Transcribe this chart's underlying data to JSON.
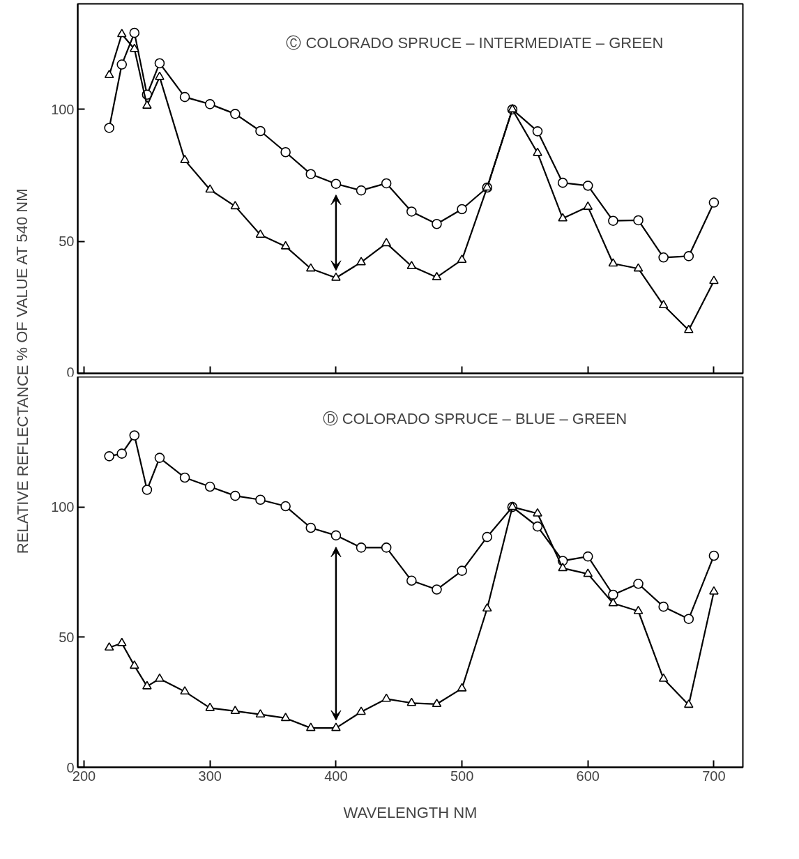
{
  "chart_data": [
    {
      "type": "line",
      "title": "Ⓒ  COLORADO SPRUCE – INTERMEDIATE – GREEN",
      "ylabel": "RELATIVE REFLECTANCE % OF VALUE AT 540 NM",
      "x": [
        220,
        230,
        240,
        250,
        260,
        280,
        300,
        320,
        340,
        360,
        380,
        400,
        420,
        440,
        460,
        480,
        500,
        520,
        540,
        560,
        580,
        600,
        620,
        640,
        660,
        680,
        700
      ],
      "series": [
        {
          "color": "#000000",
          "marker": "circle",
          "values": [
            93,
            117,
            129,
            105.6,
            117.5,
            104.7,
            102,
            98.3,
            91.8,
            83.8,
            75.5,
            71.8,
            69.3,
            72,
            61.3,
            56.6,
            62.2,
            70.4,
            100,
            91.7,
            72.2,
            71.1,
            57.8,
            58,
            43.9,
            44.4,
            64.7
          ]
        },
        {
          "color": "#000000",
          "marker": "triangle",
          "values": [
            113,
            128.5,
            122.9,
            101.4,
            112.3,
            80.8,
            69.6,
            63.3,
            52.5,
            48.1,
            39.7,
            36.2,
            42.1,
            49.3,
            40.6,
            36.4,
            43,
            70.4,
            100,
            83.5,
            58.7,
            63.1,
            41.6,
            39.7,
            25.8,
            16.4,
            35
          ]
        }
      ],
      "xlim": [
        195,
        723
      ],
      "ylim": [
        0,
        140
      ],
      "xticks": [
        200,
        300,
        400,
        500,
        600,
        700
      ],
      "yticks": [
        0,
        50,
        100
      ],
      "grid": false,
      "tick_labels": "y",
      "line_style": "solid"
    },
    {
      "type": "line",
      "title": "Ⓓ  COLORADO SPRUCE – BLUE – GREEN",
      "xlabel": "WAVELENGTH NM",
      "x": [
        220,
        230,
        240,
        250,
        260,
        280,
        300,
        320,
        340,
        360,
        380,
        400,
        420,
        440,
        460,
        480,
        500,
        520,
        540,
        560,
        580,
        600,
        620,
        640,
        660,
        680,
        700
      ],
      "series": [
        {
          "color": "#000000",
          "marker": "circle",
          "values": [
            119.5,
            120.5,
            127.5,
            106.6,
            118.9,
            111.3,
            107.8,
            104.3,
            102.8,
            100.3,
            92,
            89.1,
            84.4,
            84.4,
            71.7,
            68.3,
            75.5,
            88.5,
            100,
            92.5,
            79.3,
            81,
            66.3,
            70.5,
            61.7,
            57,
            81.3
          ]
        },
        {
          "color": "#000000",
          "marker": "triangle",
          "values": [
            46,
            47.7,
            39,
            31.1,
            34,
            29.1,
            22.8,
            21.6,
            20.3,
            18.9,
            15.1,
            15.1,
            21.3,
            26.3,
            24.7,
            24.3,
            30.3,
            61,
            100,
            97.5,
            76.5,
            74.3,
            63,
            60,
            34,
            24,
            67.5
          ]
        }
      ],
      "xlim": [
        195,
        723
      ],
      "ylim": [
        0,
        150
      ],
      "xticks": [
        200,
        300,
        400,
        500,
        600,
        700
      ],
      "yticks": [
        0,
        50,
        100
      ],
      "grid": false,
      "line_style": "solid"
    }
  ]
}
